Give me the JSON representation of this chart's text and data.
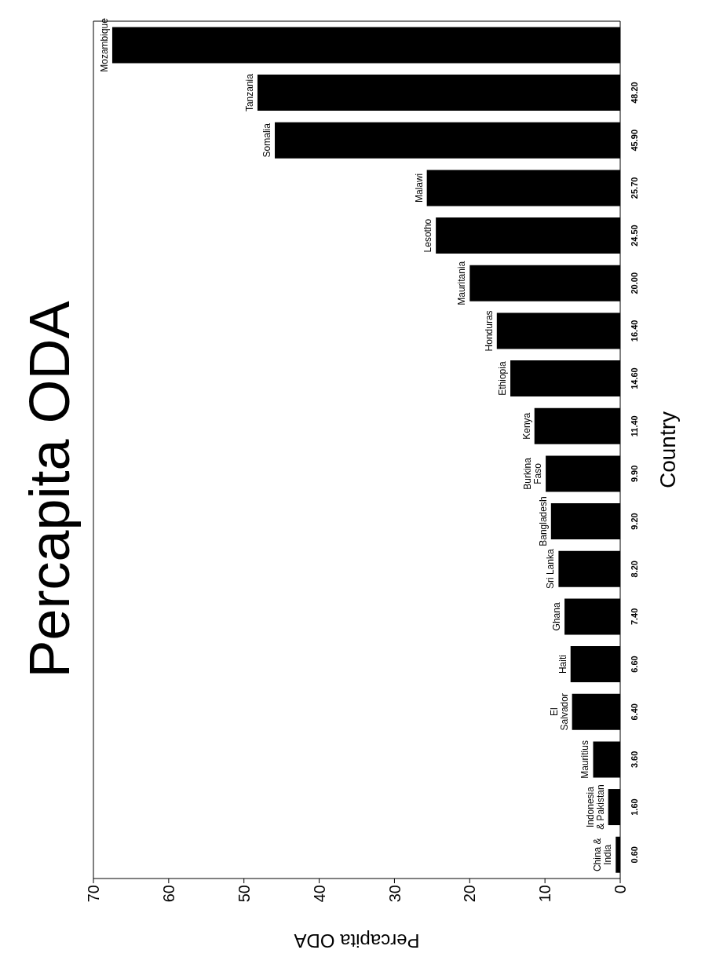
{
  "chart_data": {
    "type": "bar",
    "orientation": "horizontal",
    "title": "Percapita ODA",
    "xlabel": "Percapita ODA",
    "ylabel": "Country",
    "categories": [
      "Mozambique",
      "Tanzania",
      "Somalia",
      "Malawi",
      "Lesotho",
      "Mauritania",
      "Honduras",
      "Ethiopia",
      "Kenya",
      "Burkina Faso",
      "Bangladesh",
      "Sri Lanka",
      "Ghana",
      "Haiti",
      "El Salvador",
      "Mauritius",
      "Indonesia & Pakistan",
      "China & India"
    ],
    "values": [
      67.5,
      48.2,
      45.9,
      25.7,
      24.5,
      20.0,
      16.4,
      14.6,
      11.4,
      9.9,
      9.2,
      8.2,
      7.4,
      6.6,
      6.4,
      3.6,
      1.6,
      0.6
    ],
    "value_labels": [
      null,
      "48.20",
      "45.90",
      "25.70",
      "24.50",
      "20.00",
      "16.40",
      "14.60",
      "11.40",
      "9.90",
      "9.20",
      "8.20",
      "7.40",
      "6.60",
      "6.40",
      "3.60",
      "1.60",
      "0.60"
    ],
    "color": "#000000",
    "xlim": [
      70,
      0
    ],
    "xticks": [
      70,
      60,
      50,
      40,
      30,
      20,
      10,
      0
    ]
  }
}
